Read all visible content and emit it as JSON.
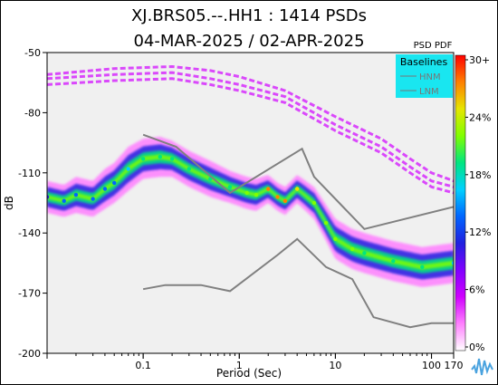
{
  "chart_data": {
    "type": "heatmap",
    "title_line1": "XJ.BRS05.--.HH1 : 1414 PSDs",
    "title_line2": "04-MAR-2025 / 02-APR-2025",
    "xlabel": "Period (Sec)",
    "ylabel": "dB",
    "x_scale": "log",
    "xlim": [
      0.01,
      170
    ],
    "ylim": [
      -200,
      -50
    ],
    "x_ticks": [
      {
        "value": 0.1,
        "label": "0.1"
      },
      {
        "value": 1,
        "label": "1"
      },
      {
        "value": 10,
        "label": "10"
      },
      {
        "value": 100,
        "label": "100"
      },
      {
        "value": 170,
        "label": "170"
      }
    ],
    "y_ticks": [
      {
        "value": -50,
        "label": "-50"
      },
      {
        "value": -80,
        "label": "-80"
      },
      {
        "value": -110,
        "label": "-110"
      },
      {
        "value": -140,
        "label": "-140"
      },
      {
        "value": -170,
        "label": "-170"
      },
      {
        "value": -200,
        "label": "-200"
      }
    ],
    "colorbar": {
      "title": "PSD PDF",
      "ticks": [
        "30+",
        "24%",
        "18%",
        "12%",
        "6%",
        "0%"
      ],
      "colors": [
        "#ff0000",
        "#ff8000",
        "#e6e600",
        "#80ff00",
        "#00e680",
        "#00d0ff",
        "#0066ff",
        "#2020e0",
        "#8000ff",
        "#d000ff",
        "#ff80ff",
        "#ffffff"
      ]
    },
    "legend": {
      "title": "Baselines",
      "items": [
        "HNM",
        "LNM"
      ],
      "placement": "top-right",
      "background": "#19e6f0",
      "text_color": "#777777"
    },
    "background": "#f0f0f0",
    "baselines": {
      "HNM": [
        [
          0.1,
          -91
        ],
        [
          0.22,
          -97
        ],
        [
          0.8,
          -120
        ],
        [
          4.5,
          -98
        ],
        [
          6,
          -112
        ],
        [
          20,
          -138
        ],
        [
          170,
          -127
        ]
      ],
      "LNM": [
        [
          0.1,
          -168
        ],
        [
          0.17,
          -166
        ],
        [
          0.4,
          -166
        ],
        [
          0.8,
          -169
        ],
        [
          2.5,
          -151
        ],
        [
          4,
          -143
        ],
        [
          8,
          -157
        ],
        [
          15,
          -163
        ],
        [
          25,
          -182
        ],
        [
          60,
          -187
        ],
        [
          100,
          -185
        ],
        [
          170,
          -185
        ]
      ]
    },
    "pdf_ridge": [
      {
        "period": 0.01,
        "db": -122,
        "width": 8,
        "level": 0.35
      },
      {
        "period": 0.015,
        "db": -124,
        "width": 8,
        "level": 0.45
      },
      {
        "period": 0.02,
        "db": -121,
        "width": 9,
        "level": 0.45
      },
      {
        "period": 0.03,
        "db": -123,
        "width": 9,
        "level": 0.5
      },
      {
        "period": 0.04,
        "db": -118,
        "width": 10,
        "level": 0.5
      },
      {
        "period": 0.05,
        "db": -115,
        "width": 10,
        "level": 0.5
      },
      {
        "period": 0.07,
        "db": -108,
        "width": 11,
        "level": 0.55
      },
      {
        "period": 0.1,
        "db": -103,
        "width": 10,
        "level": 0.6
      },
      {
        "period": 0.15,
        "db": -102,
        "width": 10,
        "level": 0.6
      },
      {
        "period": 0.2,
        "db": -103,
        "width": 9,
        "level": 0.6
      },
      {
        "period": 0.3,
        "db": -108,
        "width": 9,
        "level": 0.6
      },
      {
        "period": 0.5,
        "db": -113,
        "width": 9,
        "level": 0.6
      },
      {
        "period": 0.8,
        "db": -117,
        "width": 8,
        "level": 0.65
      },
      {
        "period": 1.2,
        "db": -120,
        "width": 8,
        "level": 0.7
      },
      {
        "period": 1.5,
        "db": -121,
        "width": 8,
        "level": 0.75
      },
      {
        "period": 2,
        "db": -118,
        "width": 7,
        "level": 0.9
      },
      {
        "period": 2.5,
        "db": -122,
        "width": 7,
        "level": 0.95
      },
      {
        "period": 3,
        "db": -124,
        "width": 7,
        "level": 0.95
      },
      {
        "period": 4,
        "db": -118,
        "width": 7,
        "level": 0.85
      },
      {
        "period": 6,
        "db": -125,
        "width": 8,
        "level": 0.75
      },
      {
        "period": 8,
        "db": -135,
        "width": 9,
        "level": 0.7
      },
      {
        "period": 10,
        "db": -143,
        "width": 10,
        "level": 0.7
      },
      {
        "period": 15,
        "db": -148,
        "width": 10,
        "level": 0.7
      },
      {
        "period": 20,
        "db": -150,
        "width": 10,
        "level": 0.65
      },
      {
        "period": 40,
        "db": -154,
        "width": 10,
        "level": 0.6
      },
      {
        "period": 80,
        "db": -157,
        "width": 10,
        "level": 0.6
      },
      {
        "period": 170,
        "db": -155,
        "width": 10,
        "level": 0.55
      }
    ],
    "upper_bands": [
      [
        [
          0.01,
          -63
        ],
        [
          0.05,
          -61
        ],
        [
          0.2,
          -60
        ],
        [
          0.5,
          -63
        ],
        [
          1,
          -66
        ],
        [
          3,
          -72
        ],
        [
          10,
          -86
        ],
        [
          30,
          -97
        ],
        [
          60,
          -107
        ],
        [
          100,
          -114
        ],
        [
          170,
          -117
        ]
      ],
      [
        [
          0.01,
          -61
        ],
        [
          0.05,
          -58
        ],
        [
          0.2,
          -57
        ],
        [
          0.5,
          -59
        ],
        [
          1,
          -62
        ],
        [
          3,
          -69
        ],
        [
          10,
          -82
        ],
        [
          30,
          -93
        ],
        [
          60,
          -103
        ],
        [
          100,
          -110
        ],
        [
          170,
          -114
        ]
      ],
      [
        [
          0.01,
          -66
        ],
        [
          0.05,
          -64
        ],
        [
          0.2,
          -63
        ],
        [
          0.5,
          -66
        ],
        [
          1,
          -69
        ],
        [
          3,
          -75
        ],
        [
          10,
          -89
        ],
        [
          30,
          -100
        ],
        [
          60,
          -110
        ],
        [
          100,
          -117
        ],
        [
          170,
          -120
        ]
      ]
    ]
  }
}
